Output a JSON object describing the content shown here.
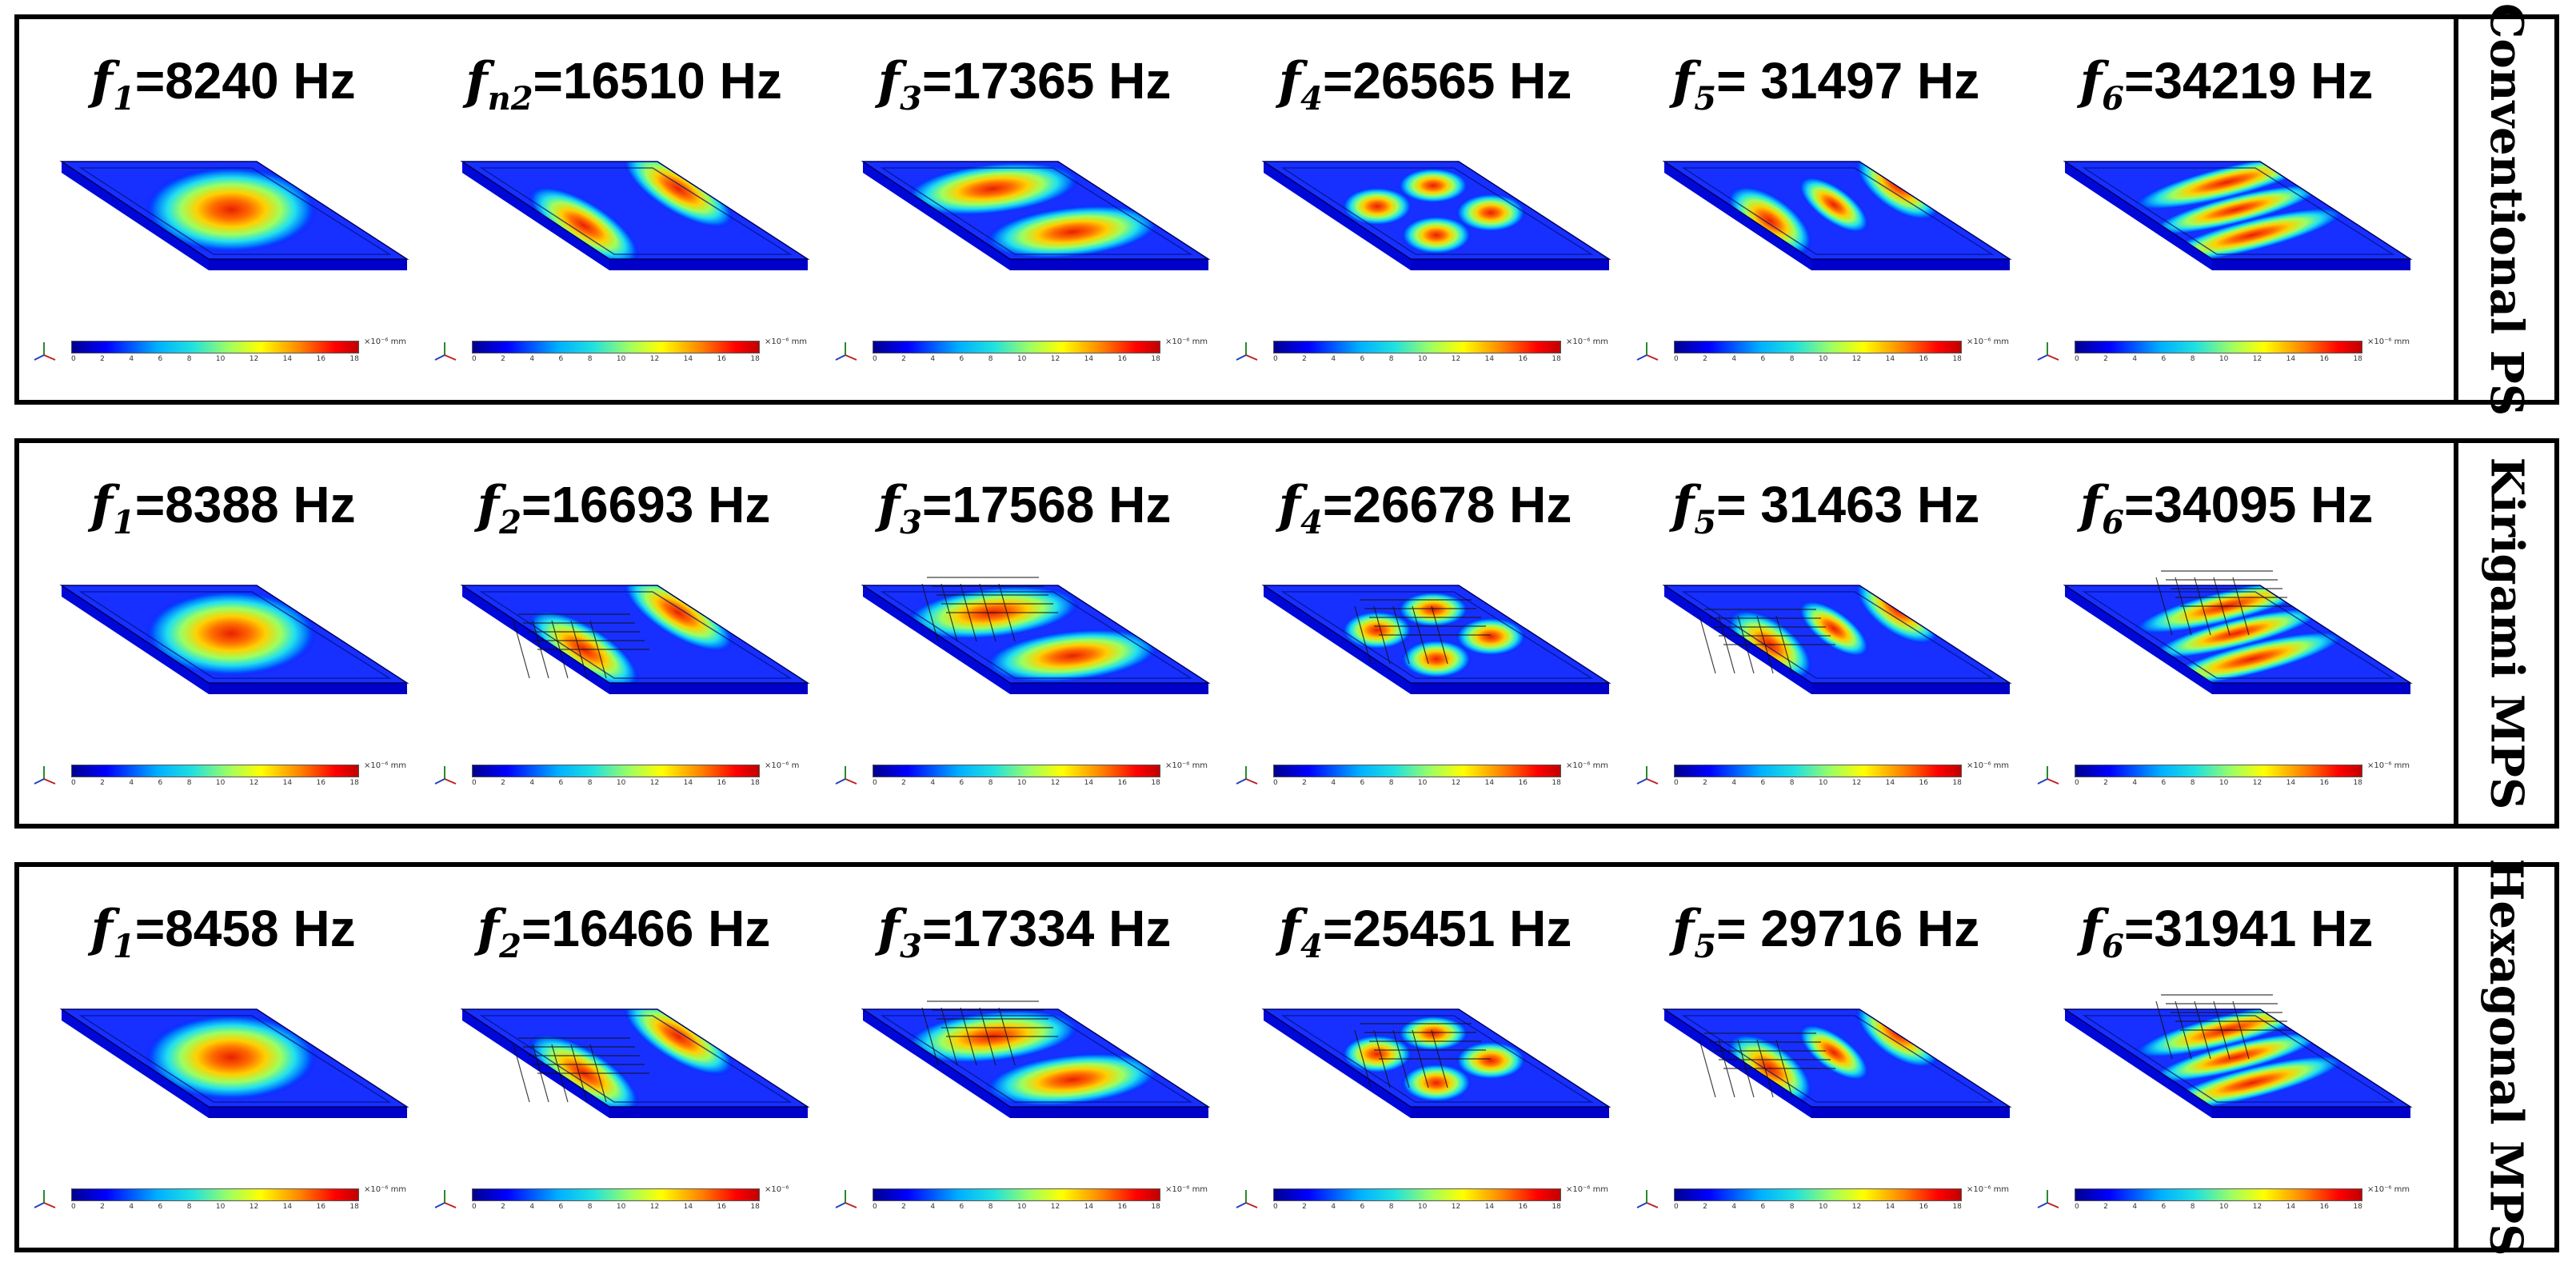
{
  "colorbar": {
    "ticks": [
      "0",
      "2",
      "4",
      "6",
      "8",
      "10",
      "12",
      "14",
      "16",
      "18"
    ]
  },
  "rows": [
    {
      "label": "Conventional PS",
      "units": [
        "×10⁻⁶ mm",
        "×10⁻⁶ mm",
        "×10⁻⁶ mm",
        "×10⁻⁶ mm",
        "×10⁻⁶ mm",
        "×10⁻⁶ mm"
      ],
      "modes": [
        {
          "sub": "1",
          "value": "=8240 Hz",
          "pattern": "single"
        },
        {
          "sub": "n2",
          "value": "=16510 Hz",
          "pattern": "diag2"
        },
        {
          "sub": "3",
          "value": "=17365 Hz",
          "pattern": "horiz2"
        },
        {
          "sub": "4",
          "value": "=26565 Hz",
          "pattern": "quad"
        },
        {
          "sub": "5",
          "value": "= 31497 Hz",
          "pattern": "diag3"
        },
        {
          "sub": "6",
          "value": "=34219 Hz",
          "pattern": "stripes3"
        }
      ]
    },
    {
      "label": "Kirigami MPS",
      "units": [
        "×10⁻⁶ mm",
        "×10⁻⁶ m",
        "×10⁻⁶ mm",
        "×10⁻⁶ mm",
        "×10⁻⁶ mm",
        "×10⁻⁶ mm"
      ],
      "modes": [
        {
          "sub": "1",
          "value": "=8388 Hz",
          "pattern": "single"
        },
        {
          "sub": "2",
          "value": "=16693 Hz",
          "pattern": "diag2"
        },
        {
          "sub": "3",
          "value": "=17568 Hz",
          "pattern": "horiz2"
        },
        {
          "sub": "4",
          "value": "=26678 Hz",
          "pattern": "quad"
        },
        {
          "sub": "5",
          "value": "= 31463 Hz",
          "pattern": "diag3"
        },
        {
          "sub": "6",
          "value": "=34095 Hz",
          "pattern": "stripes3"
        }
      ]
    },
    {
      "label": "Hexagonal MPS",
      "units": [
        "×10⁻⁶ mm",
        "×10⁻⁶",
        "×10⁻⁶ mm",
        "×10⁻⁶ mm",
        "×10⁻⁶ mm",
        "×10⁻⁶ mm"
      ],
      "modes": [
        {
          "sub": "1",
          "value": "=8458 Hz",
          "pattern": "single"
        },
        {
          "sub": "2",
          "value": "=16466 Hz",
          "pattern": "diag2"
        },
        {
          "sub": "3",
          "value": "=17334 Hz",
          "pattern": "horiz2"
        },
        {
          "sub": "4",
          "value": "=25451 Hz",
          "pattern": "quad"
        },
        {
          "sub": "5",
          "value": "= 29716 Hz",
          "pattern": "diag3"
        },
        {
          "sub": "6",
          "value": "=31941 Hz",
          "pattern": "stripes3"
        }
      ]
    }
  ]
}
